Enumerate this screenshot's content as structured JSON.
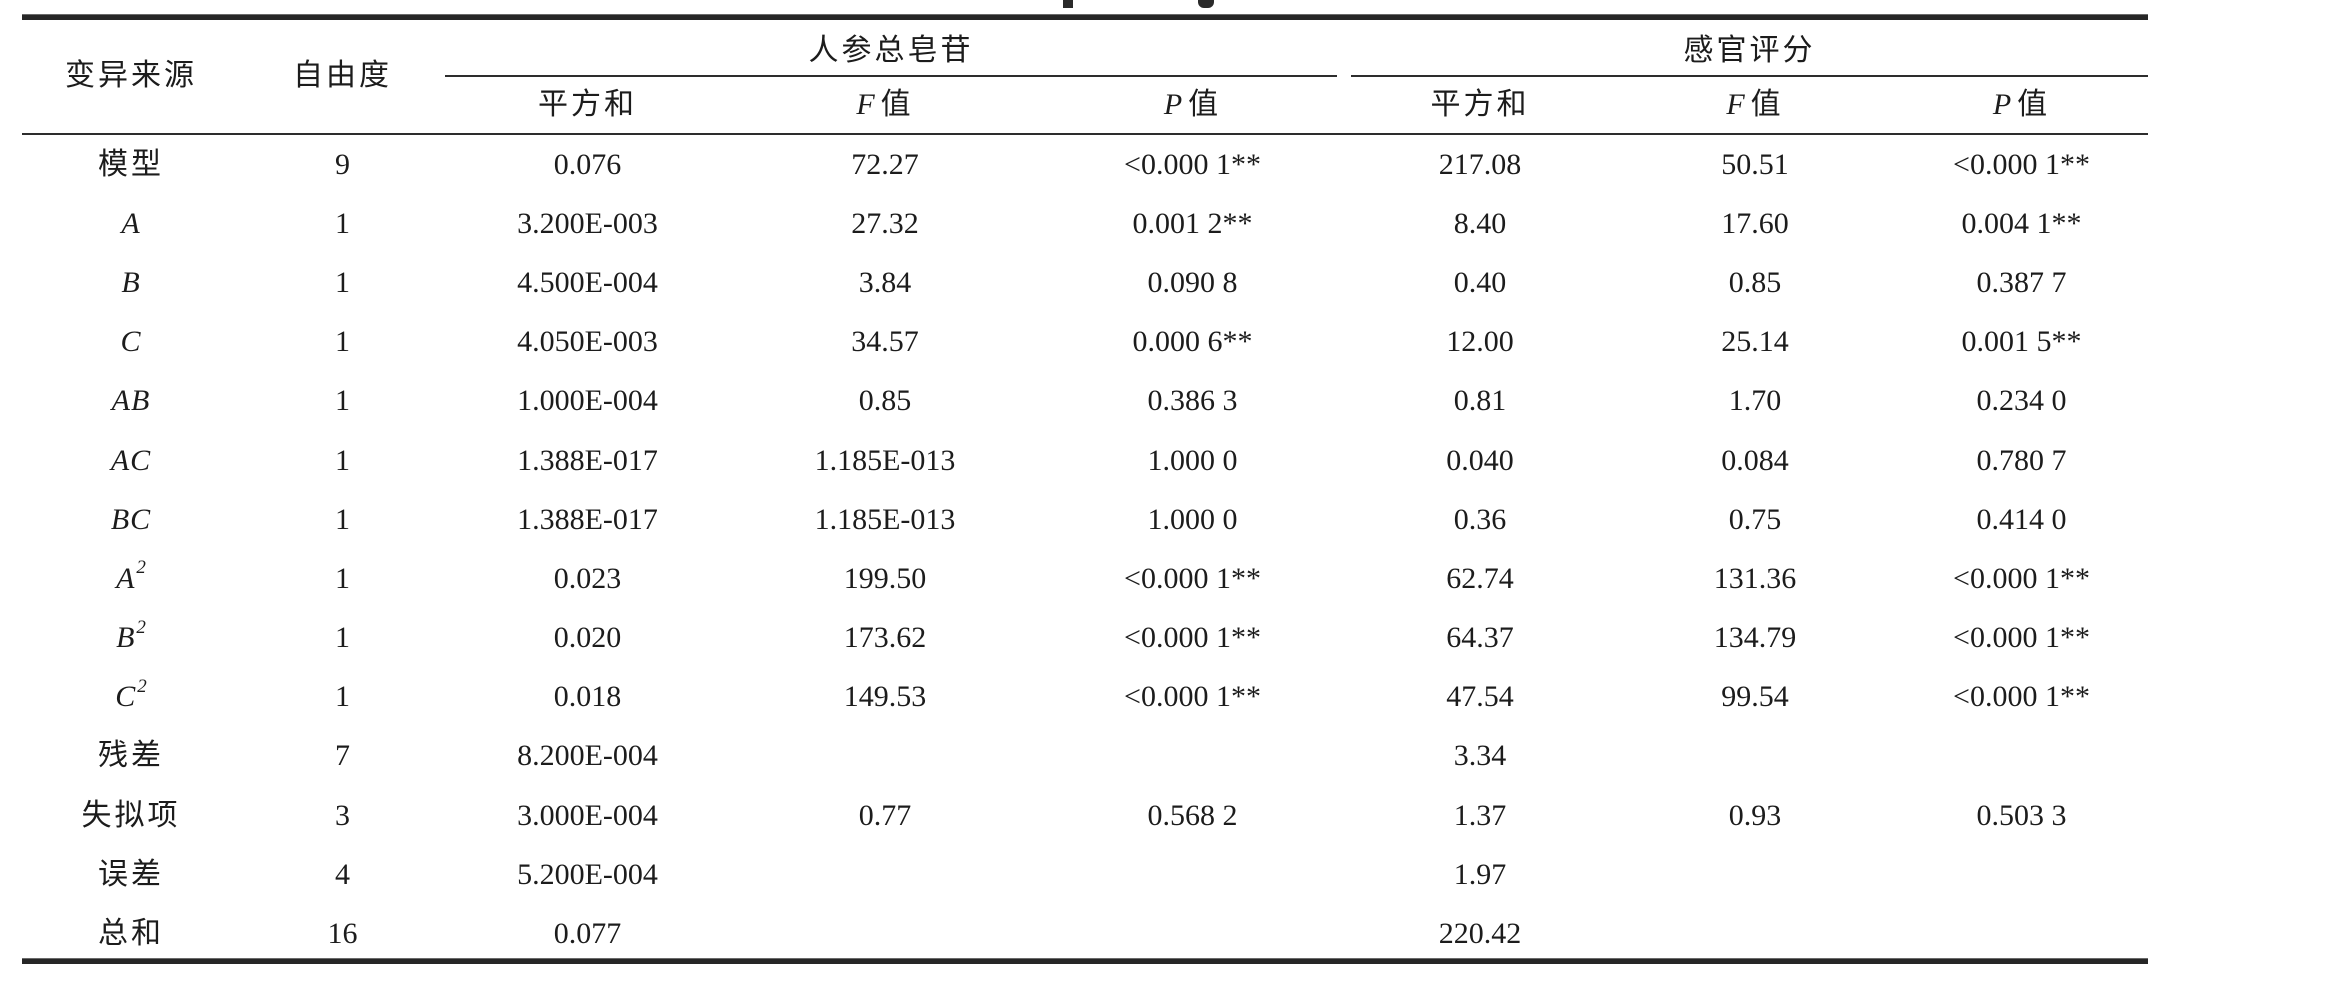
{
  "page": {
    "background": "#ffffff",
    "text_color": "#1c1c1c",
    "rule_color": "#262626"
  },
  "table": {
    "header": {
      "source_label": "变异来源",
      "df_label": "自由度",
      "groups": [
        {
          "label": "人参总皂苷"
        },
        {
          "label": "感官评分"
        }
      ],
      "sub": [
        {
          "em": "",
          "text": "平方和"
        },
        {
          "em": "F",
          "text": "值"
        },
        {
          "em": "P",
          "text": "值"
        },
        {
          "em": "",
          "text": "平方和"
        },
        {
          "em": "F",
          "text": "值"
        },
        {
          "em": "P",
          "text": "值"
        }
      ]
    },
    "rows": [
      {
        "label": "模型",
        "sup": "",
        "cells": [
          "9",
          "0.076",
          "72.27",
          "<0.000 1**",
          "217.08",
          "50.51",
          "<0.000 1**"
        ]
      },
      {
        "label": "A",
        "sup": "",
        "cells": [
          "1",
          "3.200E-003",
          "27.32",
          "0.001 2**",
          "8.40",
          "17.60",
          "0.004 1**"
        ]
      },
      {
        "label": "B",
        "sup": "",
        "cells": [
          "1",
          "4.500E-004",
          "3.84",
          "0.090 8",
          "0.40",
          "0.85",
          "0.387 7"
        ]
      },
      {
        "label": "C",
        "sup": "",
        "cells": [
          "1",
          "4.050E-003",
          "34.57",
          "0.000 6**",
          "12.00",
          "25.14",
          "0.001 5**"
        ]
      },
      {
        "label": "AB",
        "sup": "",
        "cells": [
          "1",
          "1.000E-004",
          "0.85",
          "0.386 3",
          "0.81",
          "1.70",
          "0.234 0"
        ]
      },
      {
        "label": "AC",
        "sup": "",
        "cells": [
          "1",
          "1.388E-017",
          "1.185E-013",
          "1.000 0",
          "0.040",
          "0.084",
          "0.780 7"
        ]
      },
      {
        "label": "BC",
        "sup": "",
        "cells": [
          "1",
          "1.388E-017",
          "1.185E-013",
          "1.000 0",
          "0.36",
          "0.75",
          "0.414 0"
        ]
      },
      {
        "label": "A",
        "sup": "2",
        "cells": [
          "1",
          "0.023",
          "199.50",
          "<0.000 1**",
          "62.74",
          "131.36",
          "<0.000 1**"
        ]
      },
      {
        "label": "B",
        "sup": "2",
        "cells": [
          "1",
          "0.020",
          "173.62",
          "<0.000 1**",
          "64.37",
          "134.79",
          "<0.000 1**"
        ]
      },
      {
        "label": "C",
        "sup": "2",
        "cells": [
          "1",
          "0.018",
          "149.53",
          "<0.000 1**",
          "47.54",
          "99.54",
          "<0.000 1**"
        ]
      },
      {
        "label": "残差",
        "sup": "",
        "cells": [
          "7",
          "8.200E-004",
          "",
          "",
          "3.34",
          "",
          ""
        ]
      },
      {
        "label": "失拟项",
        "sup": "",
        "cells": [
          "3",
          "3.000E-004",
          "0.77",
          "0.568 2",
          "1.37",
          "0.93",
          "0.503 3"
        ]
      },
      {
        "label": "误差",
        "sup": "",
        "cells": [
          "4",
          "5.200E-004",
          "",
          "",
          "1.97",
          "",
          ""
        ]
      },
      {
        "label": "总和",
        "sup": "",
        "cells": [
          "16",
          "0.077",
          "",
          "",
          "220.42",
          "",
          ""
        ]
      }
    ]
  }
}
